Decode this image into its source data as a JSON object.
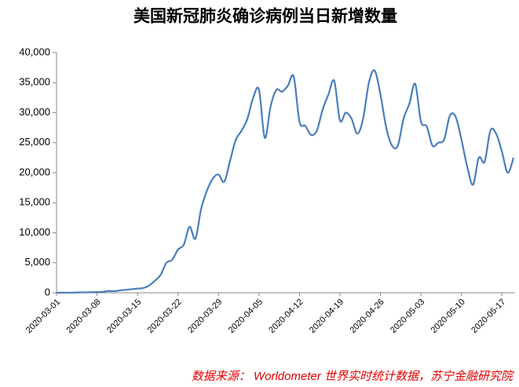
{
  "chart_data": {
    "type": "line",
    "title": "美国新冠肺炎确诊病例当日新增数量",
    "source": "数据来源： Worldometer 世界实时统计数据，苏宁金融研究院",
    "categories": [
      "2020-03-01",
      null,
      null,
      null,
      null,
      null,
      null,
      "2020-03-08",
      null,
      null,
      null,
      null,
      null,
      null,
      "2020-03-15",
      null,
      null,
      null,
      null,
      null,
      null,
      "2020-03-22",
      null,
      null,
      null,
      null,
      null,
      null,
      "2020-03-29",
      null,
      null,
      null,
      null,
      null,
      null,
      "2020-04-05",
      null,
      null,
      null,
      null,
      null,
      null,
      "2020-04-12",
      null,
      null,
      null,
      null,
      null,
      null,
      "2020-04-19",
      null,
      null,
      null,
      null,
      null,
      null,
      "2020-04-26",
      null,
      null,
      null,
      null,
      null,
      null,
      "2020-05-03",
      null,
      null,
      null,
      null,
      null,
      null,
      "2020-05-10",
      null,
      null,
      null,
      null,
      null,
      null,
      "2020-05-17",
      null,
      null
    ],
    "series": [
      {
        "name": "当日新增",
        "color": "#4a7ebb",
        "values": [
          7,
          20,
          25,
          35,
          70,
          70,
          100,
          120,
          170,
          290,
          270,
          400,
          500,
          600,
          700,
          800,
          1200,
          2000,
          3000,
          5000,
          5500,
          7200,
          8000,
          11000,
          9000,
          14000,
          17000,
          19000,
          19700,
          18500,
          22000,
          25500,
          27000,
          29000,
          32500,
          33800,
          25800,
          31000,
          33800,
          33500,
          34500,
          36000,
          28500,
          27800,
          26300,
          27000,
          30500,
          33000,
          35300,
          28700,
          30000,
          29000,
          26500,
          29000,
          35000,
          37000,
          33000,
          27500,
          24500,
          24500,
          29000,
          31500,
          34800,
          28500,
          27700,
          24500,
          25000,
          25500,
          29500,
          29300,
          25500,
          21000,
          18000,
          22500,
          21800,
          27000,
          26500,
          23500,
          20000,
          22500
        ]
      }
    ],
    "ylim": [
      0,
      40000
    ],
    "yticks": [
      0,
      {
        "value": 5000,
        "label": "5,000"
      },
      {
        "value": 10000,
        "label": "10,000"
      },
      {
        "value": 15000,
        "label": "15,000"
      },
      {
        "value": 20000,
        "label": "20,000"
      },
      {
        "value": 25000,
        "label": "25,000"
      },
      {
        "value": 30000,
        "label": "30,000"
      },
      {
        "value": 35000,
        "label": "35,000"
      },
      {
        "value": 40000,
        "label": "40,000"
      }
    ],
    "grid": false
  }
}
